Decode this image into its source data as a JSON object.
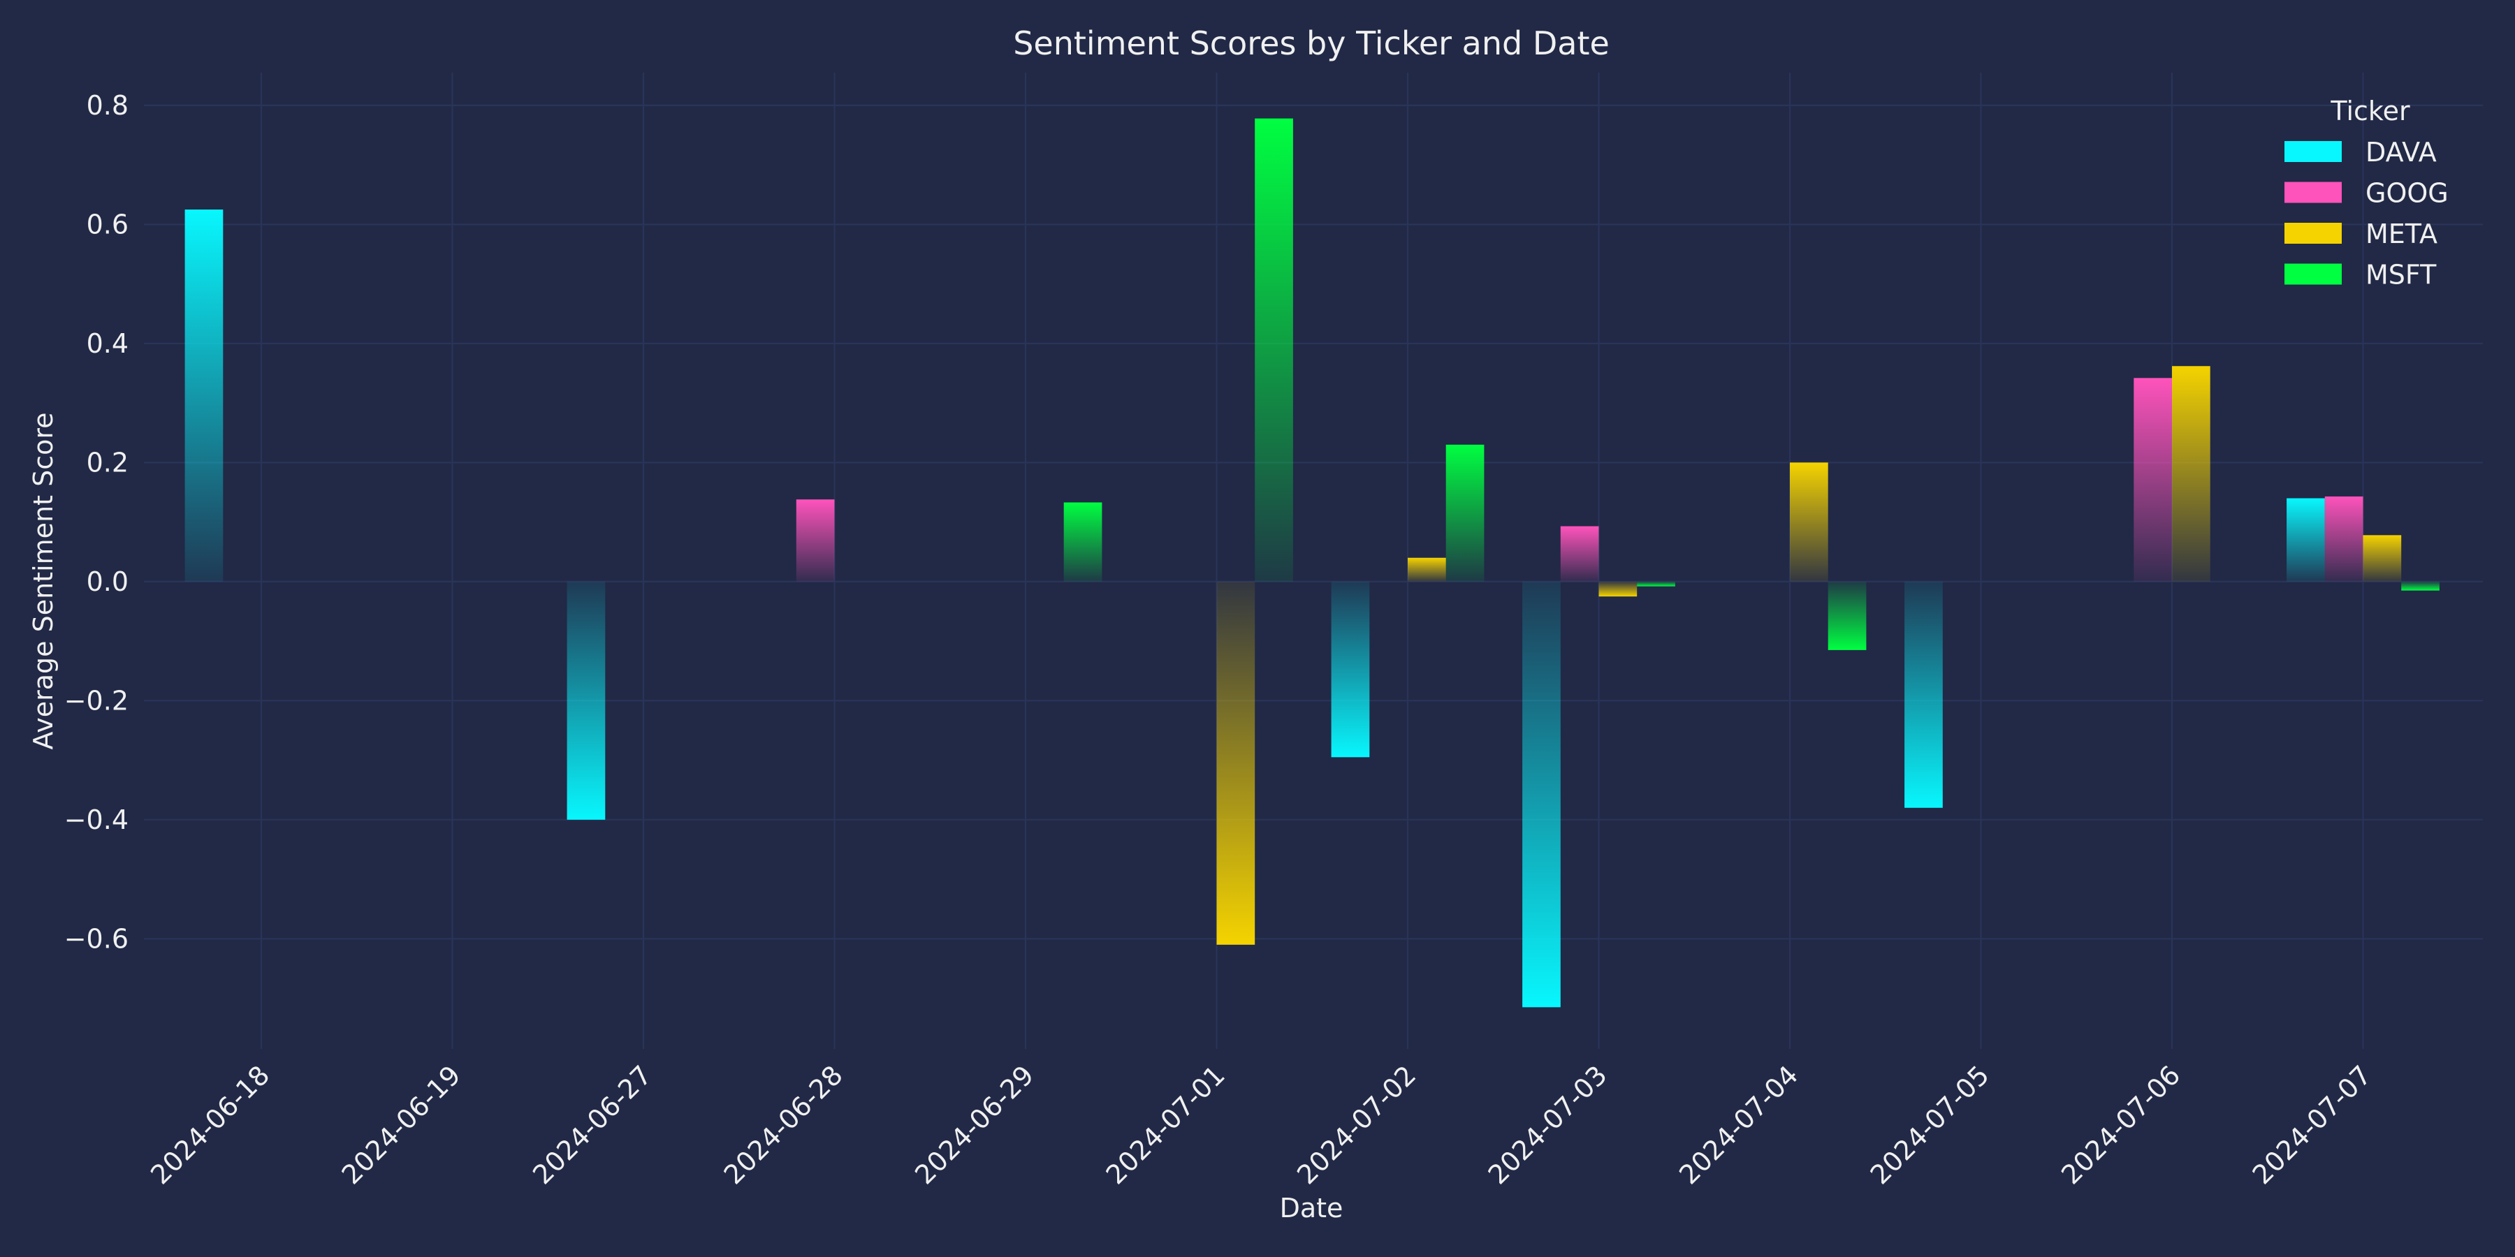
{
  "chart_data": {
    "type": "bar",
    "title": "Sentiment Scores by Ticker and Date",
    "xlabel": "Date",
    "ylabel": "Average Sentiment Score",
    "categories": [
      "2024-06-18",
      "2024-06-19",
      "2024-06-27",
      "2024-06-28",
      "2024-06-29",
      "2024-07-01",
      "2024-07-02",
      "2024-07-03",
      "2024-07-04",
      "2024-07-05",
      "2024-07-06",
      "2024-07-07"
    ],
    "series": [
      {
        "name": "DAVA",
        "color": "#08F7FE",
        "values": [
          0.625,
          null,
          -0.4,
          null,
          null,
          null,
          -0.295,
          -0.715,
          null,
          -0.38,
          null,
          0.14
        ]
      },
      {
        "name": "GOOG",
        "color": "#FE53BB",
        "values": [
          null,
          null,
          null,
          0.138,
          null,
          null,
          null,
          0.093,
          null,
          null,
          0.342,
          0.143
        ]
      },
      {
        "name": "META",
        "color": "#F5D300",
        "values": [
          null,
          null,
          null,
          null,
          null,
          -0.61,
          0.04,
          -0.025,
          0.2,
          null,
          0.362,
          0.078
        ]
      },
      {
        "name": "MSFT",
        "color": "#00ff41",
        "values": [
          null,
          null,
          null,
          null,
          0.133,
          0.778,
          0.23,
          -0.008,
          -0.115,
          null,
          null,
          -0.015
        ]
      }
    ],
    "ylim": [
      -0.785,
      0.855
    ],
    "yticks": [
      0.8,
      0.6,
      0.4,
      0.2,
      0.0,
      -0.2,
      -0.4,
      -0.6
    ],
    "ytick_labels": [
      "0.8",
      "0.6",
      "0.4",
      "0.2",
      "0.0",
      "−0.2",
      "−0.4",
      "−0.6"
    ],
    "grid": true,
    "legend": {
      "title": "Ticker",
      "placement": "top-right"
    },
    "background": "#212946",
    "grid_color": "#2A3459"
  }
}
